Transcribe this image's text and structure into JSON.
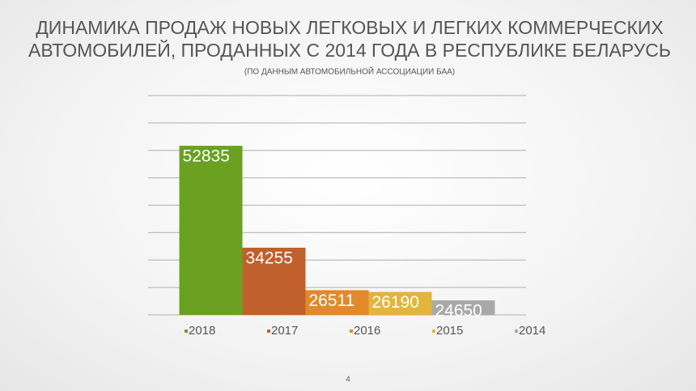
{
  "chart_data": {
    "type": "bar",
    "title": [
      "ДИНАМИКА ПРОДАЖ НОВЫХ ЛЕГКОВЫХ И ЛЕГКИХ КОММЕРЧЕСКИХ",
      "АВТОМОБИЛЕЙ, ПРОДАННЫХ С 2014 ГОДА В РЕСПУБЛИКЕ БЕЛАРУСЬ"
    ],
    "subtitle": "(ПО ДАННЫМ АВТОМОБИЛЬНОЙ АССОЦИАЦИИ БАА)",
    "categories": [
      null
    ],
    "series": [
      {
        "name": "2018",
        "color": "#6aa121",
        "values": [
          52835
        ]
      },
      {
        "name": "2017",
        "color": "#c0602d",
        "values": [
          34255
        ]
      },
      {
        "name": "2016",
        "color": "#e08a2c",
        "values": [
          26511
        ]
      },
      {
        "name": "2015",
        "color": "#e2b53c",
        "values": [
          26190
        ]
      },
      {
        "name": "2014",
        "color": "#a9a9a9",
        "values": [
          24650
        ]
      }
    ],
    "ylim": [
      22000,
      62000
    ],
    "yticks": [
      22000,
      27000,
      32000,
      37000,
      42000,
      47000,
      52000,
      57000,
      62000
    ],
    "grid": true,
    "legend": "bottom",
    "page_number": "4"
  }
}
